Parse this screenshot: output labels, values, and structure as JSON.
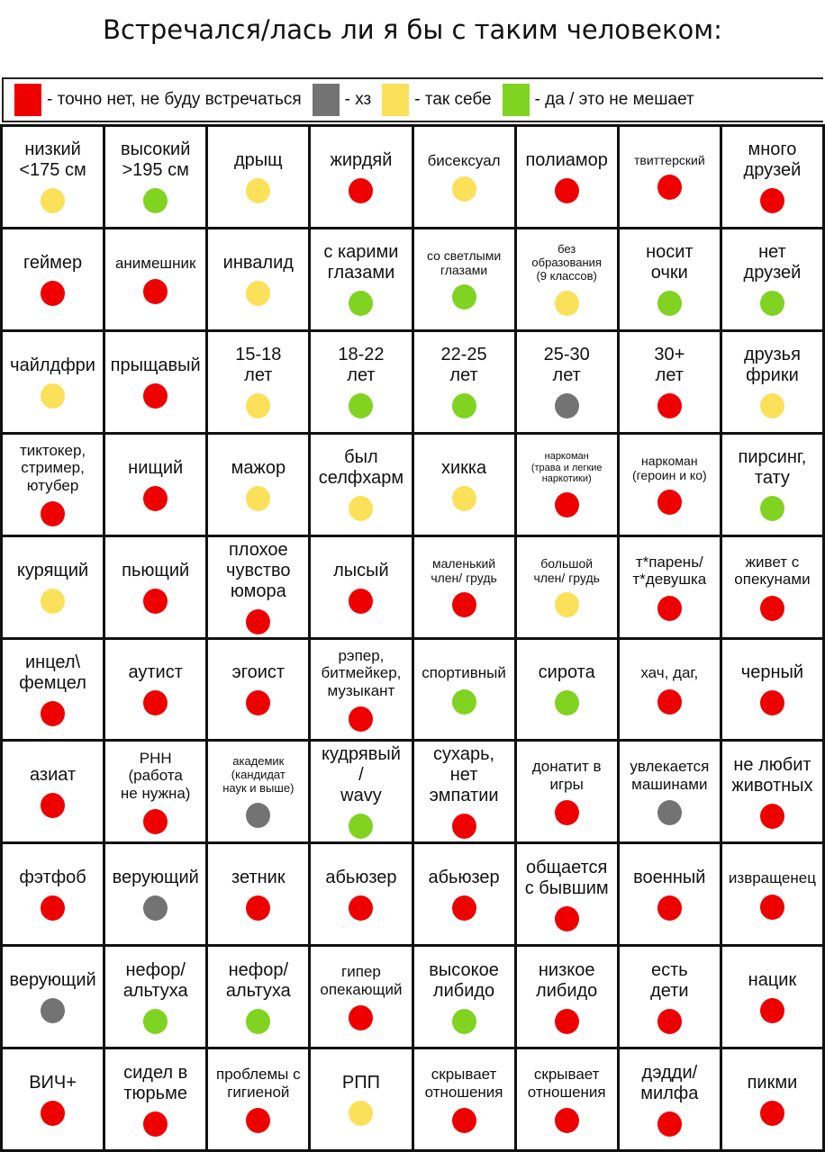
{
  "title": "Встречался/лась ли я бы с таким человеком:",
  "colors": {
    "red": "#ee0000",
    "gray": "#737373",
    "yellow": "#fbe05a",
    "green": "#80d321"
  },
  "legend": [
    {
      "color": "red",
      "label": "- точно нет, не буду встречаться"
    },
    {
      "color": "gray",
      "label": "- хз"
    },
    {
      "color": "yellow",
      "label": "- так себе"
    },
    {
      "color": "green",
      "label": "- да / это не мешает"
    }
  ],
  "cells": [
    {
      "text": "низкий\n<175 см",
      "rating": "yellow"
    },
    {
      "text": "высокий\n>195 см",
      "rating": "green"
    },
    {
      "text": "дрыщ",
      "rating": "yellow"
    },
    {
      "text": "жирдяй",
      "rating": "red"
    },
    {
      "text": "бисексуал",
      "rating": "yellow"
    },
    {
      "text": "полиамор",
      "rating": "red"
    },
    {
      "text": "твиттерский",
      "rating": "red"
    },
    {
      "text": "много\nдрузей",
      "rating": "red"
    },
    {
      "text": "геймер",
      "rating": "red"
    },
    {
      "text": "анимешник",
      "rating": "red"
    },
    {
      "text": "инвалид",
      "rating": "yellow"
    },
    {
      "text": "с карими\nглазами",
      "rating": "green"
    },
    {
      "text": "со светлыми\nглазами",
      "rating": "green"
    },
    {
      "text": "без\nобразования\n(9 классов)",
      "rating": "yellow"
    },
    {
      "text": "носит\nочки",
      "rating": "green"
    },
    {
      "text": "нет\nдрузей",
      "rating": "green"
    },
    {
      "text": "чайлдфри",
      "rating": "yellow"
    },
    {
      "text": "прыщавый",
      "rating": "red"
    },
    {
      "text": "15-18\nлет",
      "rating": "yellow"
    },
    {
      "text": "18-22\nлет",
      "rating": "green"
    },
    {
      "text": "22-25\nлет",
      "rating": "green"
    },
    {
      "text": "25-30\nлет",
      "rating": "gray"
    },
    {
      "text": "30+\nлет",
      "rating": "red"
    },
    {
      "text": "друзья\nфрики",
      "rating": "yellow"
    },
    {
      "text": "тиктокер,\nстример,\nютубер",
      "rating": "red"
    },
    {
      "text": "нищий",
      "rating": "red"
    },
    {
      "text": "мажор",
      "rating": "yellow"
    },
    {
      "text": "был\nселфхарм",
      "rating": "yellow"
    },
    {
      "text": "хикка",
      "rating": "yellow"
    },
    {
      "text": "наркоман\n(трава и легкие\nнаркотики)",
      "rating": "red"
    },
    {
      "text": "наркоман\n(героин и ко)",
      "rating": "red"
    },
    {
      "text": "пирсинг,\nтату",
      "rating": "green"
    },
    {
      "text": "курящий",
      "rating": "yellow"
    },
    {
      "text": "пьющий",
      "rating": "red"
    },
    {
      "text": "плохое\nчувство\nюмора",
      "rating": "red"
    },
    {
      "text": "лысый",
      "rating": "red"
    },
    {
      "text": "маленький\nчлен/ грудь",
      "rating": "red"
    },
    {
      "text": "большой\nчлен/ грудь",
      "rating": "yellow"
    },
    {
      "text": "т*парень/\nт*девушка",
      "rating": "red"
    },
    {
      "text": "живет с\nопекунами",
      "rating": "red"
    },
    {
      "text": "инцел\\\nфемцел",
      "rating": "red"
    },
    {
      "text": "аутист",
      "rating": "red"
    },
    {
      "text": "эгоист",
      "rating": "red"
    },
    {
      "text": "рэпер,\nбитмейкер,\nмузыкант",
      "rating": "red"
    },
    {
      "text": "спортивный",
      "rating": "green"
    },
    {
      "text": "сирота",
      "rating": "green"
    },
    {
      "text": "хач, даг,",
      "rating": "red"
    },
    {
      "text": "черный",
      "rating": "red"
    },
    {
      "text": "азиат",
      "rating": "red"
    },
    {
      "text": "РНН\n(работа\nне нужна)",
      "rating": "red"
    },
    {
      "text": "академик\n(кандидат\nнаук и выше)",
      "rating": "gray"
    },
    {
      "text": "кудрявый\n/\nwavy",
      "rating": "green"
    },
    {
      "text": "сухарь,\nнет\nэмпатии",
      "rating": "red"
    },
    {
      "text": "донатит в\nигры",
      "rating": "red"
    },
    {
      "text": "увлекается\nмашинами",
      "rating": "gray"
    },
    {
      "text": "не любит\nживотных",
      "rating": "red"
    },
    {
      "text": "фэтфоб",
      "rating": "red"
    },
    {
      "text": "верующий",
      "rating": "gray"
    },
    {
      "text": "зетник",
      "rating": "red"
    },
    {
      "text": "абьюзер",
      "rating": "red"
    },
    {
      "text": "абьюзер",
      "rating": "red"
    },
    {
      "text": "общается\nс бывшим",
      "rating": "red"
    },
    {
      "text": "военный",
      "rating": "red"
    },
    {
      "text": "извращенец",
      "rating": "red"
    },
    {
      "text": "верующий",
      "rating": "gray"
    },
    {
      "text": "нефор/\nальтуха",
      "rating": "green"
    },
    {
      "text": "нефор/\nальтуха",
      "rating": "green"
    },
    {
      "text": "гипер\nопекающий",
      "rating": "red"
    },
    {
      "text": "высокое\nлибидо",
      "rating": "green"
    },
    {
      "text": "низкое\nлибидо",
      "rating": "red"
    },
    {
      "text": "есть\nдети",
      "rating": "red"
    },
    {
      "text": "нацик",
      "rating": "red"
    },
    {
      "text": "ВИЧ+",
      "rating": "red"
    },
    {
      "text": "сидел в\nтюрьме",
      "rating": "red"
    },
    {
      "text": "проблемы с\nгигиеной",
      "rating": "red"
    },
    {
      "text": "РПП",
      "rating": "yellow"
    },
    {
      "text": "скрывает\nотношения",
      "rating": "red"
    },
    {
      "text": "скрывает\nотношения",
      "rating": "red"
    },
    {
      "text": "дэдди/\nмилфа",
      "rating": "red"
    },
    {
      "text": "пикми",
      "rating": "red"
    }
  ]
}
